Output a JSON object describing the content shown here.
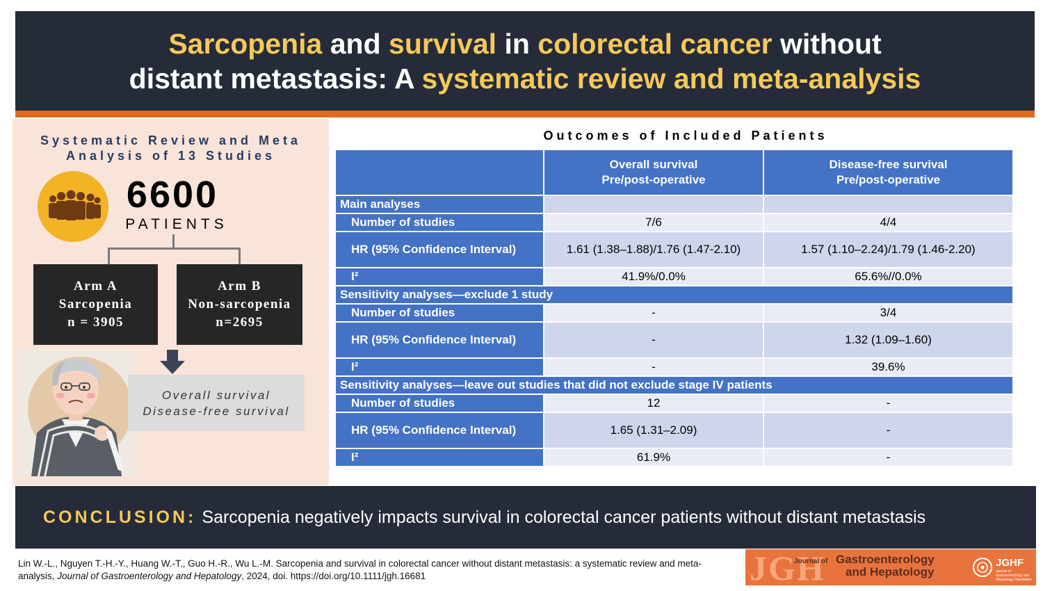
{
  "header": {
    "line1": [
      {
        "text": "Sarcopenia",
        "hl": true
      },
      {
        "text": " and ",
        "hl": false
      },
      {
        "text": "survival",
        "hl": true
      },
      {
        "text": " in ",
        "hl": false
      },
      {
        "text": "colorectal cancer",
        "hl": true
      },
      {
        "text": " without",
        "hl": false
      }
    ],
    "line2": [
      {
        "text": "distant metastasis: A ",
        "hl": false
      },
      {
        "text": "systematic review and meta-analysis",
        "hl": true
      }
    ]
  },
  "left": {
    "title_line1": "Systematic Review and Meta",
    "title_line2": "Analysis of 13 Studies",
    "patient_count": "6600",
    "patient_label": "PATIENTS",
    "people_icon": "people-group-icon",
    "arm_a": {
      "line1": "Arm A",
      "line2": "Sarcopenia",
      "line3": "n = 3905"
    },
    "arm_b": {
      "line1": "Arm B",
      "line2": "Non-sarcopenia",
      "line3": "n=2695"
    },
    "outcomes": {
      "line1": "Overall survival",
      "line2": "Disease-free survival"
    }
  },
  "table": {
    "title": "Outcomes of Included Patients",
    "col_os": {
      "line1": "Overall survival",
      "line2": "Pre/post-operative"
    },
    "col_dfs": {
      "line1": "Disease-free survival",
      "line2": "Pre/post-operative"
    },
    "sections": [
      {
        "title": "Main analyses",
        "rows": [
          {
            "label": "Number of studies",
            "os": "7/6",
            "dfs": "4/4"
          },
          {
            "label": "HR (95% Confidence Interval)",
            "os": "1.61 (1.38–1.88)/1.76 (1.47-2.10)",
            "dfs": "1.57 (1.10–2.24)/1.79 (1.46-2.20)"
          },
          {
            "label": "I²",
            "os": "41.9%/0.0%",
            "dfs": "65.6%//0.0%"
          }
        ]
      },
      {
        "title": "Sensitivity analyses—exclude 1 study",
        "rows": [
          {
            "label": "Number of studies",
            "os": "-",
            "dfs": "3/4"
          },
          {
            "label": "HR (95% Confidence Interval)",
            "os": "-",
            "dfs": "1.32 (1.09–1.60)"
          },
          {
            "label": "I²",
            "os": "-",
            "dfs": "39.6%"
          }
        ]
      },
      {
        "title": "Sensitivity analyses—leave out studies that did not exclude stage IV patients",
        "rows": [
          {
            "label": "Number of studies",
            "os": "12",
            "dfs": "-"
          },
          {
            "label": "HR (95% Confidence Interval)",
            "os": "1.65 (1.31–2.09)",
            "dfs": "-"
          },
          {
            "label": "I²",
            "os": "61.9%",
            "dfs": "-"
          }
        ]
      }
    ]
  },
  "conclusion": {
    "label": "CONCLUSION:",
    "text": "Sarcopenia negatively impacts survival in colorectal cancer patients without distant metastasis"
  },
  "citation": {
    "part1": "Lin W.-L., Nguyen T.-H.-Y., Huang W.-T., Guo H.-R., Wu L.-M. Sarcopenia and survival in colorectal cancer without distant metastasis: a systematic review and meta-analysis, ",
    "journal": "Journal of Gastroenterology and Hepatology",
    "part2": ", 2024, doi. https://doi.org/10.1111/jgh.16681"
  },
  "logo": {
    "jgh": "JGH",
    "journal_of": "Journal of",
    "name_line1": "Gastroenterology",
    "name_line2": "and Hepatology",
    "jghf": "JGHF",
    "jghf_sub": "Journal of Gastroenterology and Hepatology Foundation"
  },
  "colors": {
    "navy": "#252b38",
    "gold": "#f5c85a",
    "orange": "#de6b1f",
    "table_blue": "#4472c4",
    "panel_peach": "#f9e4da"
  }
}
